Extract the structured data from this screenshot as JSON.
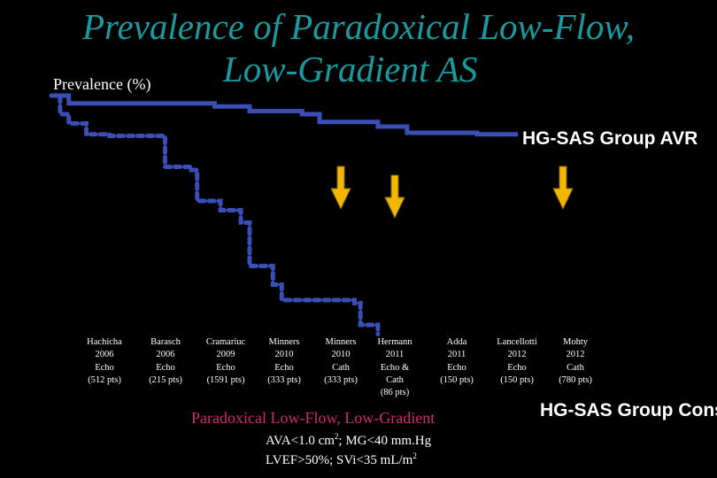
{
  "title_line1": "Prevalence of Paradoxical Low-Flow,",
  "title_line2": "Low-Gradient AS",
  "colors": {
    "title": "#1a9a9e",
    "curve": "#3a4fb5",
    "arrow": "#f2b705",
    "arrow_stroke": "#8a6a00",
    "footer_title": "#cc2d6e"
  },
  "chart_data": {
    "type": "line",
    "ylabel": "Prevalence (%)",
    "series": [
      {
        "name": "HG-SAS Group AVR",
        "style": "solid",
        "points": [
          [
            0.0,
            100
          ],
          [
            0.3,
            97.5
          ],
          [
            2.1,
            97.5
          ],
          [
            2.8,
            96.5
          ],
          [
            3.4,
            95
          ],
          [
            4.3,
            94
          ],
          [
            4.6,
            91.5
          ],
          [
            5.6,
            90
          ],
          [
            6.1,
            88
          ],
          [
            7.3,
            87.5
          ],
          [
            8.0,
            87.5
          ]
        ]
      },
      {
        "name": "HG-SAS Group Cons.",
        "style": "dashed",
        "points": [
          [
            0.0,
            100
          ],
          [
            0.15,
            94
          ],
          [
            0.3,
            91
          ],
          [
            0.6,
            87.5
          ],
          [
            1.0,
            87
          ],
          [
            1.7,
            87
          ],
          [
            1.95,
            77
          ],
          [
            2.4,
            76
          ],
          [
            2.5,
            66
          ],
          [
            2.9,
            63
          ],
          [
            3.25,
            59
          ],
          [
            3.4,
            45
          ],
          [
            3.8,
            39
          ],
          [
            3.95,
            34
          ],
          [
            5.2,
            33
          ],
          [
            5.3,
            26
          ],
          [
            5.6,
            23
          ]
        ]
      }
    ],
    "studies": [
      {
        "lines": [
          "Hachicha",
          "2006",
          "Echo",
          "(512 pts)"
        ]
      },
      {
        "lines": [
          "Barasch",
          "2006",
          "Echo",
          "(215 pts)"
        ]
      },
      {
        "lines": [
          "Cramariuc",
          "2009",
          "Echo",
          "(1591 pts)"
        ]
      },
      {
        "lines": [
          "Minners",
          "2010",
          "Echo",
          "(333 pts)"
        ]
      },
      {
        "lines": [
          "Minners",
          "2010",
          "Cath",
          "(333 pts)"
        ]
      },
      {
        "lines": [
          "Hermann",
          "2011",
          "Echo &",
          "Cath",
          "(86 pts)"
        ]
      },
      {
        "lines": [
          "Adda",
          "2011",
          "Echo",
          "(150 pts)"
        ]
      },
      {
        "lines": [
          "Lancellotti",
          "2012",
          "Echo",
          "(150 pts)"
        ]
      },
      {
        "lines": [
          "Mohty",
          "2012",
          "Cath",
          "(780 pts)"
        ]
      }
    ],
    "arrows_at_studies": [
      "Minners 2010 Cath",
      "Hermann 2011",
      "Mohty 2012"
    ]
  },
  "footer": {
    "title": "Paradoxical Low-Flow, Low-Gradient",
    "line1_pre": "AVA<1.0 cm",
    "line1_sup": "2",
    "line1_post": "; MG<40 mm.Hg",
    "line2_pre": "LVEF>50%; SVi<35 mL/m",
    "line2_sup": "2"
  }
}
